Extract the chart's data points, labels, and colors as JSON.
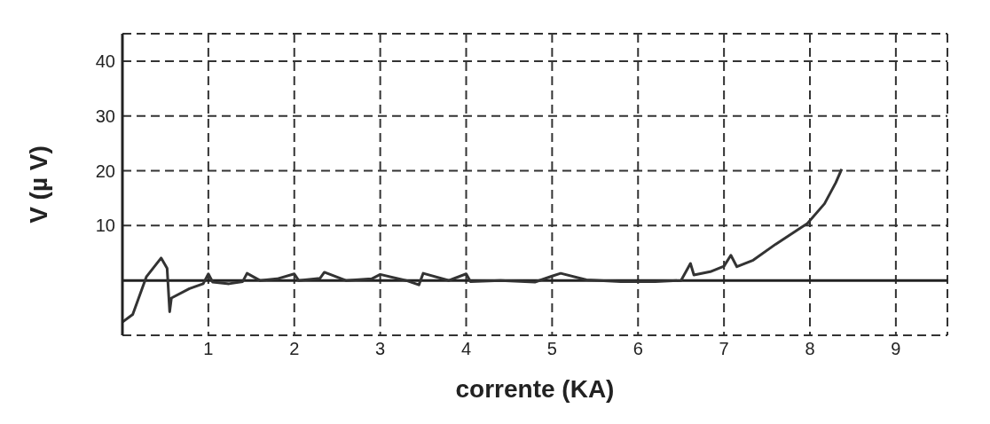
{
  "chart_data": {
    "type": "line",
    "xlabel": "corrente   (KA)",
    "ylabel": "V (µ V)",
    "x": [
      0,
      0.12,
      0.28,
      0.45,
      0.52,
      0.55,
      0.57,
      0.78,
      0.94,
      1.0,
      1.05,
      1.24,
      1.4,
      1.45,
      1.6,
      1.8,
      2.0,
      2.05,
      2.3,
      2.35,
      2.6,
      2.9,
      3.0,
      3.3,
      3.45,
      3.5,
      3.8,
      4.0,
      4.05,
      4.4,
      4.8,
      5.0,
      5.1,
      5.4,
      5.8,
      6.2,
      6.5,
      6.61,
      6.65,
      6.84,
      7.0,
      7.08,
      7.15,
      7.34,
      7.6,
      7.97,
      8.17,
      8.3,
      8.37
    ],
    "values": [
      -7.6,
      -6.2,
      0.7,
      4.1,
      2.2,
      -5.7,
      -3.2,
      -1.5,
      -0.6,
      1.2,
      -0.3,
      -0.6,
      -0.2,
      1.3,
      0,
      0.3,
      1.2,
      0,
      0.4,
      1.5,
      0,
      0.3,
      1.1,
      0,
      -0.8,
      1.3,
      0,
      1.2,
      -0.2,
      0,
      -0.3,
      0.8,
      1.3,
      0.1,
      -0.2,
      -0.2,
      0,
      3.1,
      1,
      1.6,
      2.6,
      4.6,
      2.5,
      3.7,
      6.6,
      10.4,
      14,
      17.8,
      20.3
    ],
    "color": "#333333",
    "marker": "none",
    "line_style": "solid",
    "xlim": [
      0,
      9.6
    ],
    "ylim": [
      -10,
      45
    ],
    "xticks": [
      1,
      2,
      3,
      4,
      5,
      6,
      7,
      8,
      9
    ],
    "yticks": [
      10,
      20,
      30,
      40
    ],
    "grid": true
  }
}
